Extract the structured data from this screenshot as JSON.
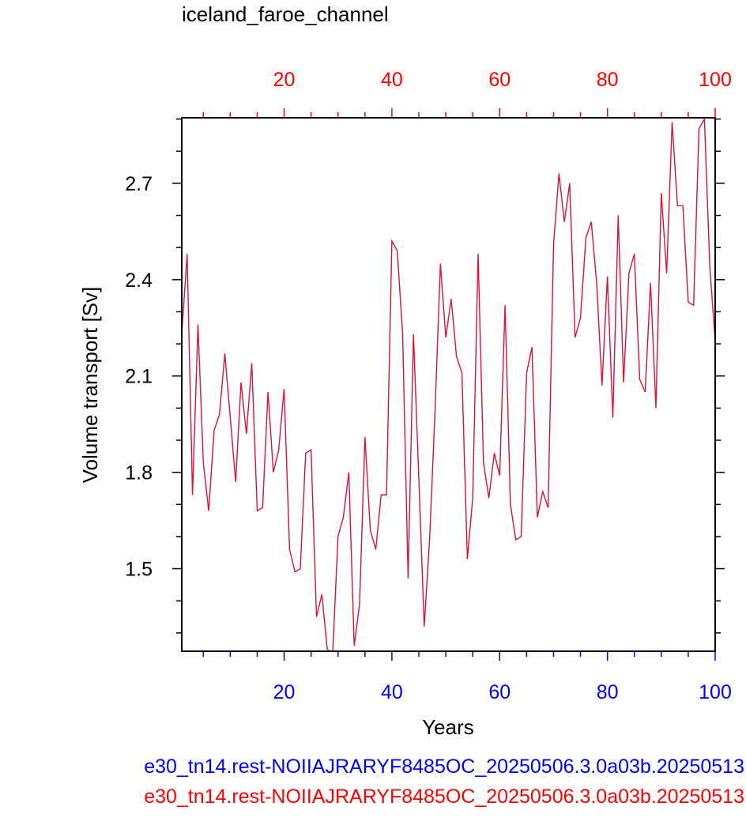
{
  "chart_data": {
    "type": "line",
    "title": "iceland_faroe_channel",
    "xlabel": "Years",
    "ylabel": "Volume transport [Sv]",
    "xlim": [
      1,
      100
    ],
    "ylim": [
      1.243,
      2.904
    ],
    "x_ticks": [
      20,
      40,
      60,
      80,
      100
    ],
    "y_ticks": [
      1.5,
      1.8,
      2.1,
      2.4,
      2.7
    ],
    "y_tick_labels": [
      "1.5",
      "1.8",
      "2.1",
      "2.4",
      "2.7"
    ],
    "x_tick_labels": [
      "20",
      "40",
      "60",
      "80",
      "100"
    ],
    "grid": false,
    "x": [
      1,
      2,
      3,
      4,
      5,
      6,
      7,
      8,
      9,
      10,
      11,
      12,
      13,
      14,
      15,
      16,
      17,
      18,
      19,
      20,
      21,
      22,
      23,
      24,
      25,
      26,
      27,
      28,
      29,
      30,
      31,
      32,
      33,
      34,
      35,
      36,
      37,
      38,
      39,
      40,
      41,
      42,
      43,
      44,
      45,
      46,
      47,
      48,
      49,
      50,
      51,
      52,
      53,
      54,
      55,
      56,
      57,
      58,
      59,
      60,
      61,
      62,
      63,
      64,
      65,
      66,
      67,
      68,
      69,
      70,
      71,
      72,
      73,
      74,
      75,
      76,
      77,
      78,
      79,
      80,
      81,
      82,
      83,
      84,
      85,
      86,
      87,
      88,
      89,
      90,
      91,
      92,
      93,
      94,
      95,
      96,
      97,
      98,
      99,
      100
    ],
    "series": [
      {
        "color": "#ff0000",
        "values": [
          2.23,
          2.48,
          1.73,
          2.26,
          1.83,
          1.68,
          1.93,
          1.98,
          2.17,
          1.97,
          1.77,
          2.08,
          1.92,
          2.14,
          1.68,
          1.69,
          2.05,
          1.8,
          1.87,
          2.06,
          1.56,
          1.49,
          1.5,
          1.86,
          1.87,
          1.35,
          1.42,
          1.25,
          1.23,
          1.6,
          1.66,
          1.8,
          1.26,
          1.39,
          1.91,
          1.62,
          1.56,
          1.73,
          1.73,
          2.52,
          2.49,
          2.23,
          1.47,
          2.23,
          1.78,
          1.32,
          1.59,
          1.99,
          2.45,
          2.22,
          2.34,
          2.16,
          2.11,
          1.53,
          1.72,
          2.48,
          1.83,
          1.72,
          1.86,
          1.79,
          2.32,
          1.7,
          1.59,
          1.6,
          2.11,
          2.19,
          1.66,
          1.74,
          1.69,
          2.51,
          2.73,
          2.58,
          2.7,
          2.22,
          2.28,
          2.53,
          2.58,
          2.39,
          2.07,
          2.41,
          1.97,
          2.6,
          2.08,
          2.42,
          2.48,
          2.09,
          2.05,
          2.39,
          2.0,
          2.67,
          2.42,
          2.89,
          2.63,
          2.63,
          2.33,
          2.32,
          2.87,
          2.9,
          2.44,
          2.21
        ]
      },
      {
        "color": "#0000ff",
        "values": [
          2.23,
          2.48,
          1.73,
          2.26,
          1.83,
          1.68,
          1.93,
          1.98,
          2.17,
          1.97,
          1.77,
          2.08,
          1.92,
          2.14,
          1.68,
          1.69,
          2.05,
          1.8,
          1.87,
          2.06,
          1.56,
          1.49,
          1.5,
          1.86,
          1.87,
          1.35,
          1.42,
          1.25,
          1.23,
          1.6,
          1.66,
          1.8,
          1.26,
          1.39,
          1.91,
          1.62,
          1.56,
          1.73,
          1.73,
          2.52,
          2.49,
          2.23,
          1.47,
          2.23,
          1.78,
          1.32,
          1.59,
          1.99,
          2.45,
          2.22,
          2.34,
          2.16,
          2.11,
          1.53,
          1.72,
          2.48,
          1.83,
          1.72,
          1.86,
          1.79,
          2.32,
          1.7,
          1.59,
          1.6,
          2.11,
          2.19,
          1.66,
          1.74,
          1.69,
          2.51,
          2.73,
          2.58,
          2.7,
          2.22,
          2.28,
          2.53,
          2.58,
          2.39,
          2.07,
          2.41,
          1.97,
          2.6,
          2.08,
          2.42,
          2.48,
          2.09,
          2.05,
          2.39,
          2.0,
          2.67,
          2.42,
          2.89,
          2.63,
          2.63,
          2.33,
          2.32,
          2.87,
          2.9,
          2.44,
          2.21
        ]
      }
    ]
  },
  "colors": {
    "bottom_axis": "#0000ff",
    "top_axis": "#ff0000",
    "frame": "#000000"
  },
  "captions": {
    "blue": "e30_tn14.rest-NOIIAJRARYF8485OC_20250506.3.0a03b.20250513",
    "red": "e30_tn14.rest-NOIIAJRARYF8485OC_20250506.3.0a03b.20250513"
  }
}
